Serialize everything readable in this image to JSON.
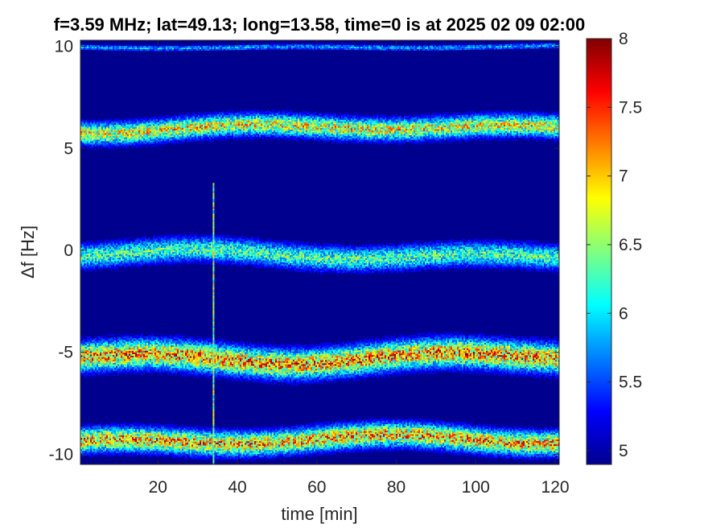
{
  "chart_data": {
    "type": "heatmap",
    "title": "f=3.59 MHz;  lat=49.13; long=13.58, time=0 is at 2025 02 09 02:00",
    "xlabel": "time [min]",
    "ylabel": "Δf [Hz]",
    "xlim": [
      0.5,
      121
    ],
    "ylim": [
      -10.5,
      10.3
    ],
    "x_ticks": [
      "20",
      "40",
      "60",
      "80",
      "100",
      "120"
    ],
    "x_tick_values": [
      20,
      40,
      60,
      80,
      100,
      120
    ],
    "y_ticks": [
      "10",
      "5",
      "0",
      "-5",
      "-10"
    ],
    "y_tick_values": [
      10,
      5,
      0,
      -5,
      -10
    ],
    "colorbar": {
      "range": [
        4.9,
        8
      ],
      "ticks": [
        "5",
        "5.5",
        "6",
        "6.5",
        "7",
        "7.5",
        "8"
      ],
      "tick_values": [
        5,
        5.5,
        6,
        6.5,
        7,
        7.5,
        8
      ],
      "colormap": "jet"
    },
    "background_value": 4.95,
    "bands": [
      {
        "center_hz": 10.0,
        "halfwidth_hz": 0.12,
        "peak_value": 6.0
      },
      {
        "center_hz": 6.0,
        "halfwidth_hz": 0.45,
        "peak_value": 7.2
      },
      {
        "center_hz": -0.2,
        "halfwidth_hz": 0.5,
        "peak_value": 6.6
      },
      {
        "center_hz": -5.2,
        "halfwidth_hz": 0.6,
        "peak_value": 7.6
      },
      {
        "center_hz": -9.3,
        "halfwidth_hz": 0.5,
        "peak_value": 7.5
      }
    ],
    "vertical_line": {
      "time_min": 34,
      "from_hz": -10.5,
      "to_hz": 3.3,
      "peak_value": 7.2
    }
  }
}
